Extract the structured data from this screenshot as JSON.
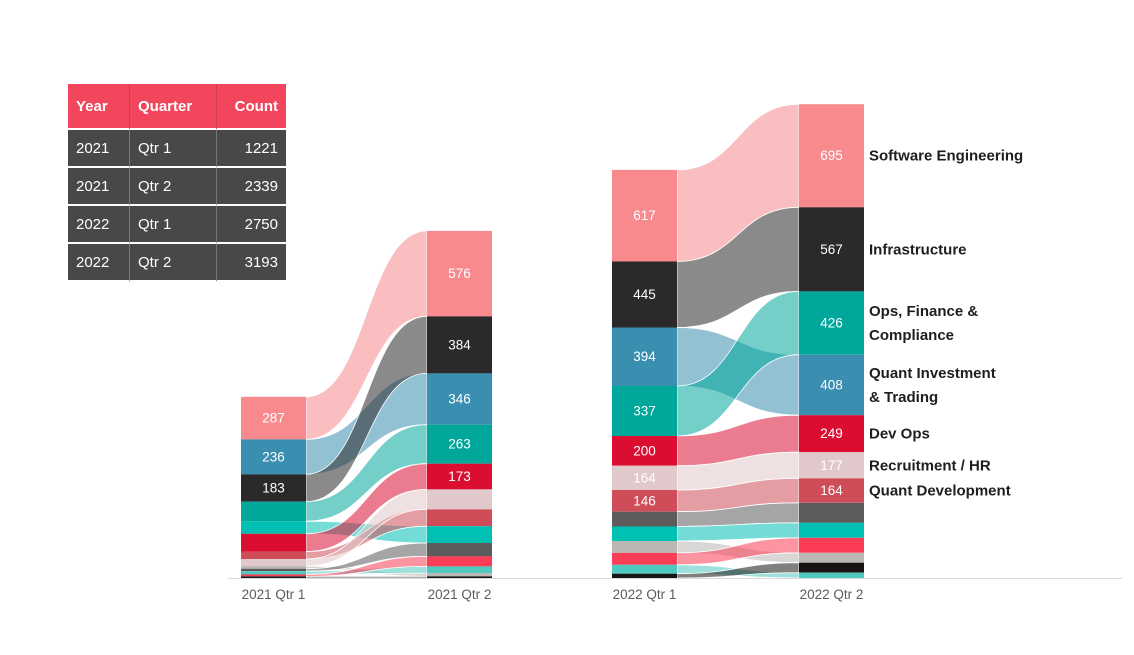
{
  "table": {
    "columns": [
      {
        "label": "Year",
        "align": "left"
      },
      {
        "label": "Quarter",
        "align": "left"
      },
      {
        "label": "Count",
        "align": "right"
      }
    ],
    "rows": [
      [
        "2021",
        "Qtr 1",
        "1221"
      ],
      [
        "2021",
        "Qtr 2",
        "2339"
      ],
      [
        "2022",
        "Qtr 1",
        "2750"
      ],
      [
        "2022",
        "Qtr 2",
        "3193"
      ]
    ],
    "header_bg": "#F1465C",
    "row_bg": "#4A4747",
    "text_color": "#FFFFFF"
  },
  "chart_data": {
    "type": "ribbon",
    "x_categories": [
      "2021 Qtr 1",
      "2021 Qtr 2",
      "2022 Qtr 1",
      "2022 Qtr 2"
    ],
    "axis_color": "#DADADA",
    "x_label_color": "#5E5B58",
    "value_label_color": "#FFFFFF",
    "category_label_color": "#1E1E1E",
    "categories": [
      {
        "id": "software-engineering",
        "label": "Software Engineering",
        "color": "#F8898D"
      },
      {
        "id": "infrastructure",
        "label": "Infrastructure",
        "color": "#2B2929"
      },
      {
        "id": "ops-finance-compliance",
        "label": "Ops, Finance &\nCompliance",
        "color": "#00A79A"
      },
      {
        "id": "quant-investment-trading",
        "label": "Quant Investment\n& Trading",
        "color": "#3A8EB0"
      },
      {
        "id": "dev-ops",
        "label": "Dev Ops",
        "color": "#DB0E32"
      },
      {
        "id": "recruitment-hr",
        "label": "Recruitment / HR",
        "color": "#E1C8CA"
      },
      {
        "id": "quant-development",
        "label": "Quant Development",
        "color": "#CF4D59"
      },
      {
        "id": "unlabeled-dark-gray",
        "label": "",
        "color": "#5D5B5B"
      },
      {
        "id": "unlabeled-medium-teal",
        "label": "",
        "color": "#00C0B4"
      },
      {
        "id": "unlabeled-light-gray",
        "label": "",
        "color": "#BAB7B5"
      },
      {
        "id": "unlabeled-bright-pink",
        "label": "",
        "color": "#FB3D55"
      },
      {
        "id": "unlabeled-light-teal",
        "label": "",
        "color": "#4FC9BF"
      },
      {
        "id": "unlabeled-black",
        "label": "",
        "color": "#161514"
      }
    ],
    "columns": [
      {
        "x_label": "2021 Qtr 1",
        "total": 1221,
        "segments": [
          {
            "cat": "software-engineering",
            "value": 287,
            "label": "287"
          },
          {
            "cat": "quant-investment-trading",
            "value": 236,
            "label": "236"
          },
          {
            "cat": "infrastructure",
            "value": 183,
            "label": "183"
          },
          {
            "cat": "ops-finance-compliance",
            "value": 132,
            "label": ""
          },
          {
            "cat": "unlabeled-medium-teal",
            "value": 85,
            "label": ""
          },
          {
            "cat": "dev-ops",
            "value": 120,
            "label": ""
          },
          {
            "cat": "quant-development",
            "value": 50,
            "label": ""
          },
          {
            "cat": "recruitment-hr",
            "value": 48,
            "label": ""
          },
          {
            "cat": "unlabeled-light-gray",
            "value": 17,
            "label": ""
          },
          {
            "cat": "unlabeled-dark-gray",
            "value": 17,
            "label": ""
          },
          {
            "cat": "unlabeled-light-teal",
            "value": 22,
            "label": ""
          },
          {
            "cat": "unlabeled-bright-pink",
            "value": 13,
            "label": ""
          },
          {
            "cat": "unlabeled-black",
            "value": 11,
            "label": ""
          }
        ]
      },
      {
        "x_label": "2021 Qtr 2",
        "total": 2339,
        "segments": [
          {
            "cat": "software-engineering",
            "value": 576,
            "label": "576"
          },
          {
            "cat": "infrastructure",
            "value": 384,
            "label": "384"
          },
          {
            "cat": "quant-investment-trading",
            "value": 346,
            "label": "346"
          },
          {
            "cat": "ops-finance-compliance",
            "value": 263,
            "label": "263"
          },
          {
            "cat": "dev-ops",
            "value": 173,
            "label": "173"
          },
          {
            "cat": "recruitment-hr",
            "value": 135,
            "label": ""
          },
          {
            "cat": "quant-development",
            "value": 113,
            "label": ""
          },
          {
            "cat": "unlabeled-medium-teal",
            "value": 113,
            "label": ""
          },
          {
            "cat": "unlabeled-dark-gray",
            "value": 90,
            "label": ""
          },
          {
            "cat": "unlabeled-bright-pink",
            "value": 68,
            "label": ""
          },
          {
            "cat": "unlabeled-light-teal",
            "value": 45,
            "label": ""
          },
          {
            "cat": "unlabeled-light-gray",
            "value": 22,
            "label": ""
          },
          {
            "cat": "unlabeled-black",
            "value": 11,
            "label": ""
          }
        ]
      },
      {
        "x_label": "2022 Qtr 1",
        "total": 2750,
        "segments": [
          {
            "cat": "software-engineering",
            "value": 617,
            "label": "617"
          },
          {
            "cat": "infrastructure",
            "value": 445,
            "label": "445"
          },
          {
            "cat": "quant-investment-trading",
            "value": 394,
            "label": "394"
          },
          {
            "cat": "ops-finance-compliance",
            "value": 337,
            "label": "337"
          },
          {
            "cat": "dev-ops",
            "value": 200,
            "label": "200"
          },
          {
            "cat": "recruitment-hr",
            "value": 164,
            "label": "164"
          },
          {
            "cat": "quant-development",
            "value": 146,
            "label": "146"
          },
          {
            "cat": "unlabeled-dark-gray",
            "value": 100,
            "label": ""
          },
          {
            "cat": "unlabeled-medium-teal",
            "value": 98,
            "label": ""
          },
          {
            "cat": "unlabeled-light-gray",
            "value": 80,
            "label": ""
          },
          {
            "cat": "unlabeled-bright-pink",
            "value": 80,
            "label": ""
          },
          {
            "cat": "unlabeled-light-teal",
            "value": 60,
            "label": ""
          },
          {
            "cat": "unlabeled-black",
            "value": 29,
            "label": ""
          }
        ]
      },
      {
        "x_label": "2022 Qtr 2",
        "total": 3193,
        "segments": [
          {
            "cat": "software-engineering",
            "value": 695,
            "label": "695"
          },
          {
            "cat": "infrastructure",
            "value": 567,
            "label": "567"
          },
          {
            "cat": "ops-finance-compliance",
            "value": 426,
            "label": "426"
          },
          {
            "cat": "quant-investment-trading",
            "value": 408,
            "label": "408"
          },
          {
            "cat": "dev-ops",
            "value": 249,
            "label": "249"
          },
          {
            "cat": "recruitment-hr",
            "value": 177,
            "label": "177"
          },
          {
            "cat": "quant-development",
            "value": 164,
            "label": "164"
          },
          {
            "cat": "unlabeled-dark-gray",
            "value": 135,
            "label": ""
          },
          {
            "cat": "unlabeled-medium-teal",
            "value": 101,
            "label": ""
          },
          {
            "cat": "unlabeled-bright-pink",
            "value": 101,
            "label": ""
          },
          {
            "cat": "unlabeled-light-gray",
            "value": 67,
            "label": ""
          },
          {
            "cat": "unlabeled-black",
            "value": 67,
            "label": ""
          },
          {
            "cat": "unlabeled-light-teal",
            "value": 36,
            "label": ""
          }
        ]
      }
    ],
    "ribbon_pairs": [
      [
        0,
        1
      ],
      [
        2,
        3
      ]
    ],
    "right_labels_for": [
      "software-engineering",
      "infrastructure",
      "ops-finance-compliance",
      "quant-investment-trading",
      "dev-ops",
      "recruitment-hr",
      "quant-development"
    ]
  }
}
